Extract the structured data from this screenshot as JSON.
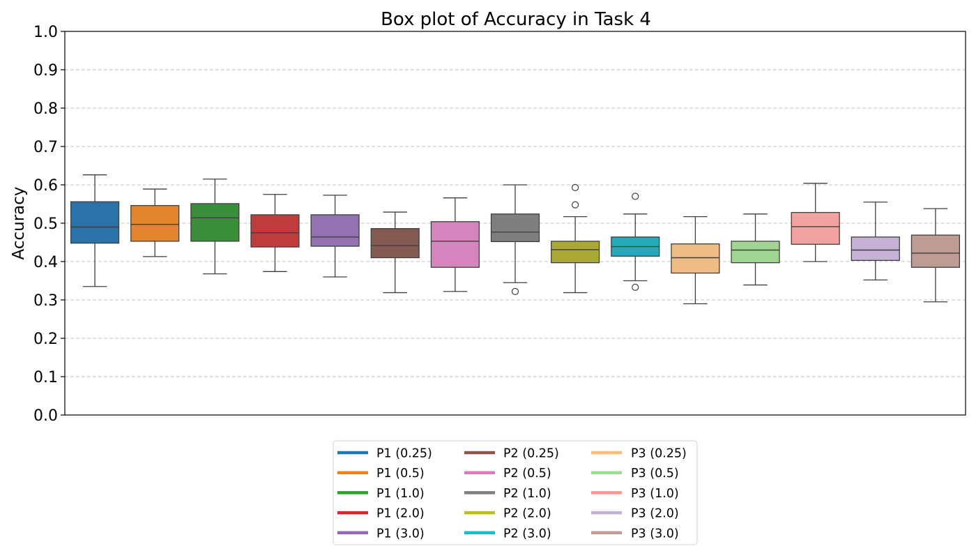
{
  "chart_data": {
    "type": "box",
    "title": "Box plot of Accuracy in Task 4",
    "xlabel": "",
    "ylabel": "Accuracy",
    "ylim": [
      0.0,
      1.0
    ],
    "yticks": [
      "0.0",
      "0.1",
      "0.2",
      "0.3",
      "0.4",
      "0.5",
      "0.6",
      "0.7",
      "0.8",
      "0.9",
      "1.0"
    ],
    "grid": "horizontal dashed",
    "legend_position": "bottom-center",
    "series": [
      {
        "name": "P1 (0.25)",
        "color": "#2b72a8",
        "legend_color": "#1f77b4",
        "whisker_low": 0.335,
        "q1": 0.448,
        "median": 0.49,
        "q3": 0.556,
        "whisker_high": 0.626,
        "outliers": []
      },
      {
        "name": "P1 (0.5)",
        "color": "#e2852f",
        "legend_color": "#ff7f0e",
        "whisker_low": 0.413,
        "q1": 0.453,
        "median": 0.497,
        "q3": 0.546,
        "whisker_high": 0.589,
        "outliers": []
      },
      {
        "name": "P1 (1.0)",
        "color": "#3a8e3a",
        "legend_color": "#2ca02c",
        "whisker_low": 0.368,
        "q1": 0.453,
        "median": 0.514,
        "q3": 0.551,
        "whisker_high": 0.615,
        "outliers": []
      },
      {
        "name": "P1 (2.0)",
        "color": "#c03d3e",
        "legend_color": "#d62728",
        "whisker_low": 0.374,
        "q1": 0.438,
        "median": 0.475,
        "q3": 0.522,
        "whisker_high": 0.575,
        "outliers": []
      },
      {
        "name": "P1 (3.0)",
        "color": "#9372b1",
        "legend_color": "#9467bd",
        "whisker_low": 0.36,
        "q1": 0.44,
        "median": 0.464,
        "q3": 0.522,
        "whisker_high": 0.573,
        "outliers": []
      },
      {
        "name": "P2 (0.25)",
        "color": "#845b53",
        "legend_color": "#8c564b",
        "whisker_low": 0.319,
        "q1": 0.41,
        "median": 0.442,
        "q3": 0.486,
        "whisker_high": 0.529,
        "outliers": []
      },
      {
        "name": "P2 (0.5)",
        "color": "#d684bd",
        "legend_color": "#e377c2",
        "whisker_low": 0.322,
        "q1": 0.385,
        "median": 0.453,
        "q3": 0.504,
        "whisker_high": 0.566,
        "outliers": []
      },
      {
        "name": "P2 (1.0)",
        "color": "#7f7f7f",
        "legend_color": "#7f7f7f",
        "whisker_low": 0.345,
        "q1": 0.452,
        "median": 0.477,
        "q3": 0.524,
        "whisker_high": 0.6,
        "outliers": [
          0.322
        ]
      },
      {
        "name": "P2 (2.0)",
        "color": "#a9a935",
        "legend_color": "#bcbd22",
        "whisker_low": 0.319,
        "q1": 0.397,
        "median": 0.431,
        "q3": 0.453,
        "whisker_high": 0.517,
        "outliers": [
          0.593,
          0.548
        ]
      },
      {
        "name": "P2 (3.0)",
        "color": "#26a9b8",
        "legend_color": "#17becf",
        "whisker_low": 0.35,
        "q1": 0.414,
        "median": 0.439,
        "q3": 0.464,
        "whisker_high": 0.524,
        "outliers": [
          0.57,
          0.333
        ]
      },
      {
        "name": "P3 (0.25)",
        "color": "#f0bc85",
        "legend_color": "#ffbb78",
        "whisker_low": 0.29,
        "q1": 0.37,
        "median": 0.41,
        "q3": 0.446,
        "whisker_high": 0.517,
        "outliers": []
      },
      {
        "name": "P3 (0.5)",
        "color": "#a0d594",
        "legend_color": "#98df8a",
        "whisker_low": 0.339,
        "q1": 0.397,
        "median": 0.43,
        "q3": 0.453,
        "whisker_high": 0.524,
        "outliers": []
      },
      {
        "name": "P3 (1.0)",
        "color": "#f0a3a0",
        "legend_color": "#ff9896",
        "whisker_low": 0.4,
        "q1": 0.445,
        "median": 0.491,
        "q3": 0.528,
        "whisker_high": 0.604,
        "outliers": []
      },
      {
        "name": "P3 (2.0)",
        "color": "#c5b2d4",
        "legend_color": "#c5b0d5",
        "whisker_low": 0.352,
        "q1": 0.403,
        "median": 0.43,
        "q3": 0.464,
        "whisker_high": 0.555,
        "outliers": []
      },
      {
        "name": "P3 (3.0)",
        "color": "#bc9c95",
        "legend_color": "#c49c94",
        "whisker_low": 0.295,
        "q1": 0.385,
        "median": 0.422,
        "q3": 0.469,
        "whisker_high": 0.538,
        "outliers": []
      }
    ]
  }
}
